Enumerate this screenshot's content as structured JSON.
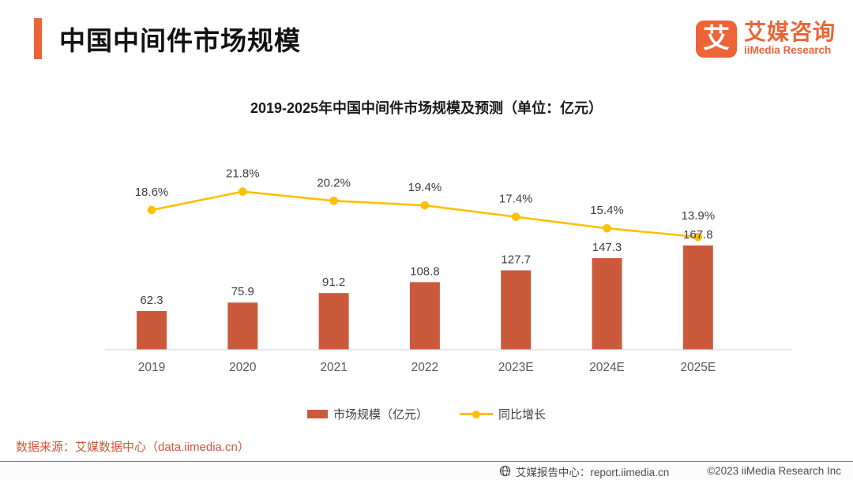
{
  "header": {
    "title": "中国中间件市场规模",
    "logo": {
      "mark_glyph": "艾",
      "name_cn": "艾媒咨询",
      "name_en": "iiMedia Research"
    }
  },
  "chart_data": {
    "type": "bar",
    "title": "2019-2025年中国中间件市场规模及预测（单位：亿元）",
    "categories": [
      "2019",
      "2020",
      "2021",
      "2022",
      "2023E",
      "2024E",
      "2025E"
    ],
    "series": [
      {
        "name": "市场规模（亿元）",
        "type": "bar",
        "values": [
          62.3,
          75.9,
          91.2,
          108.8,
          127.7,
          147.3,
          167.8
        ],
        "color": "#CB5A3D"
      },
      {
        "name": "同比增长",
        "type": "line",
        "unit": "%",
        "values": [
          18.6,
          21.8,
          20.2,
          19.4,
          17.4,
          15.4,
          13.9
        ],
        "labels": [
          "18.6%",
          "21.8%",
          "20.2%",
          "19.4%",
          "17.4%",
          "15.4%",
          "13.9%"
        ],
        "color": "#FFC000"
      }
    ],
    "ylabel": "",
    "xlabel": "",
    "grid": false,
    "legend_position": "bottom"
  },
  "legend": {
    "bar_label": "市场规模（亿元）",
    "line_label": "同比增长"
  },
  "source": "数据来源：艾媒数据中心（data.iimedia.cn）",
  "footer": {
    "report_center": "艾媒报告中心：report.iimedia.cn",
    "copyright": "©2023  iiMedia Research Inc"
  },
  "colors": {
    "accent": "#EC6437",
    "bar": "#CB5A3D",
    "line": "#FFC000",
    "source_text": "#D4543A",
    "axis": "#DBDBDB"
  }
}
